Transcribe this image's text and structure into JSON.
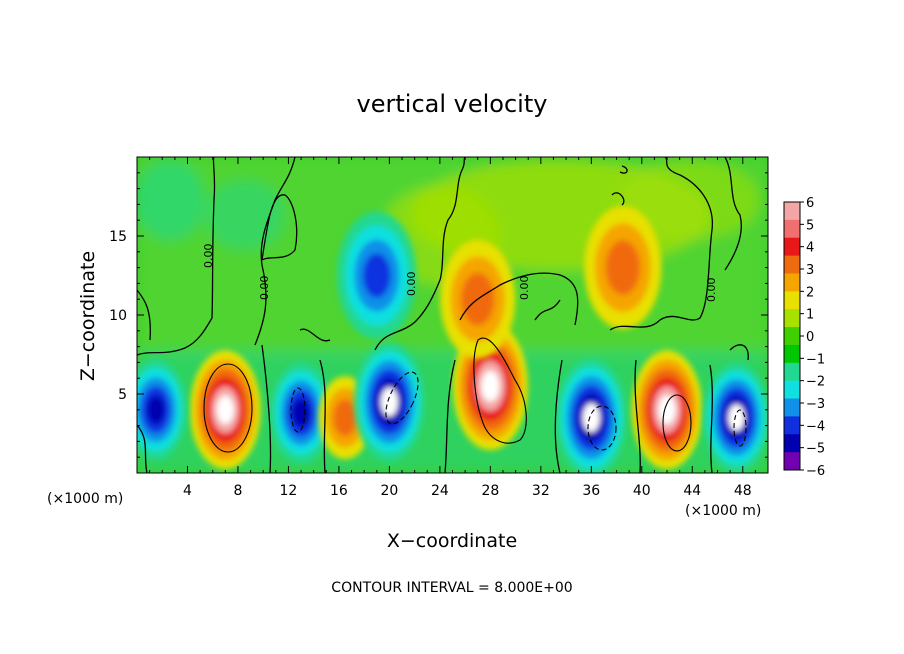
{
  "chart_data": {
    "type": "heatmap",
    "title": "vertical velocity",
    "xlabel": "X−coordinate",
    "ylabel": "Z−coordinate",
    "x_unit": "(×1000 m)",
    "x_unit_right": "(×1000 m)",
    "xlim": [
      0,
      50
    ],
    "ylim": [
      0,
      20
    ],
    "x_ticks": [
      "4",
      "8",
      "12",
      "16",
      "20",
      "24",
      "28",
      "32",
      "36",
      "40",
      "44",
      "48"
    ],
    "x_tick_values": [
      4,
      8,
      12,
      16,
      20,
      24,
      28,
      32,
      36,
      40,
      44,
      48
    ],
    "y_ticks": [
      "5",
      "10",
      "15"
    ],
    "y_tick_values": [
      5,
      10,
      15
    ],
    "colorbar": {
      "labels": [
        "6",
        "5",
        "4",
        "3",
        "2",
        "1",
        "0",
        "−1",
        "−2",
        "−3",
        "−4",
        "−5",
        "−6"
      ],
      "range": [
        -6,
        6
      ],
      "colors": [
        "#f4a6a6",
        "#f07070",
        "#e81818",
        "#f06a10",
        "#f5a500",
        "#e8e000",
        "#a8e000",
        "#40d000",
        "#00c800",
        "#20d890",
        "#10e0e0",
        "#1090e8",
        "#1030e0",
        "#0000b0",
        "#7000b0"
      ]
    },
    "contour_labels": [
      "0.00",
      "0.00",
      "0.00",
      "0.00",
      "0.00",
      "0.00"
    ],
    "annotation": "CONTOUR INTERVAL = 8.000E+00",
    "features": [
      {
        "x": 7,
        "z": 4,
        "w": 7
      },
      {
        "x": 13,
        "z": 3.8,
        "w": -5
      },
      {
        "x": 16.5,
        "z": 3.5,
        "w": 3
      },
      {
        "x": 20,
        "z": 4.5,
        "w": -7
      },
      {
        "x": 28,
        "z": 5.5,
        "w": 8
      },
      {
        "x": 36,
        "z": 3.5,
        "w": -7
      },
      {
        "x": 42,
        "z": 4,
        "w": 7
      },
      {
        "x": 47.5,
        "z": 3.5,
        "w": -6
      },
      {
        "x": 1.5,
        "z": 4,
        "w": -5
      },
      {
        "x": 19,
        "z": 12.5,
        "w": -3.5
      },
      {
        "x": 38.5,
        "z": 13,
        "w": 3
      },
      {
        "x": 27,
        "z": 11,
        "w": 2.5
      }
    ]
  }
}
